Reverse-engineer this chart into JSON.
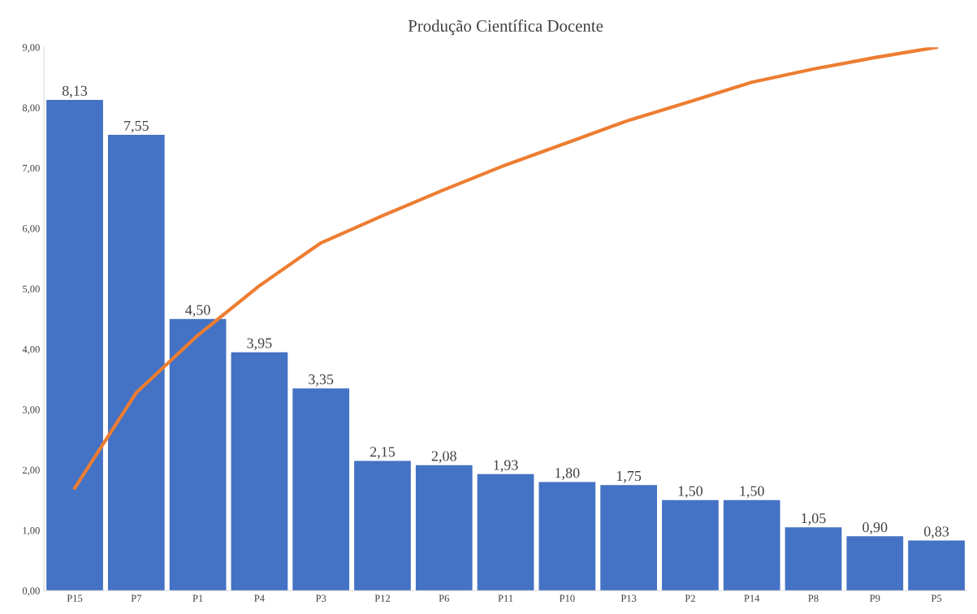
{
  "chart_data": {
    "type": "bar",
    "title": "Produção Científica Docente",
    "categories": [
      "P15",
      "P7",
      "P1",
      "P4",
      "P3",
      "P12",
      "P6",
      "P11",
      "P10",
      "P13",
      "P2",
      "P14",
      "P8",
      "P9",
      "P5"
    ],
    "series": [
      {
        "color": "#4472c4",
        "values": [
          8.13,
          7.55,
          4.5,
          3.95,
          3.35,
          2.15,
          2.08,
          1.93,
          1.8,
          1.75,
          1.5,
          1.5,
          1.05,
          0.9,
          0.83
        ],
        "value_labels": [
          "8,13",
          "7,55",
          "4,50",
          "3,95",
          "3,35",
          "2,15",
          "2,08",
          "1,93",
          "1,80",
          "1,75",
          "1,50",
          "1,50",
          "1,05",
          "0,90",
          "0,83"
        ]
      },
      {
        "type": "line",
        "color": "#ed7d31",
        "marker": "none",
        "values": [
          1.7,
          3.28,
          4.23,
          5.05,
          5.76,
          6.21,
          6.64,
          7.05,
          7.42,
          7.79,
          8.1,
          8.42,
          8.64,
          8.83,
          9.0
        ]
      }
    ],
    "ylim": [
      0,
      9
    ],
    "yticks": [
      {
        "value": 0,
        "label": "0,00"
      },
      {
        "value": 1,
        "label": "1,00"
      },
      {
        "value": 2,
        "label": "2,00"
      },
      {
        "value": 3,
        "label": "3,00"
      },
      {
        "value": 4,
        "label": "4,00"
      },
      {
        "value": 5,
        "label": "5,00"
      },
      {
        "value": 6,
        "label": "6,00"
      },
      {
        "value": 7,
        "label": "7,00"
      },
      {
        "value": 8,
        "label": "8,00"
      },
      {
        "value": 9,
        "label": "9,00"
      }
    ],
    "grid": false,
    "legend": false
  }
}
